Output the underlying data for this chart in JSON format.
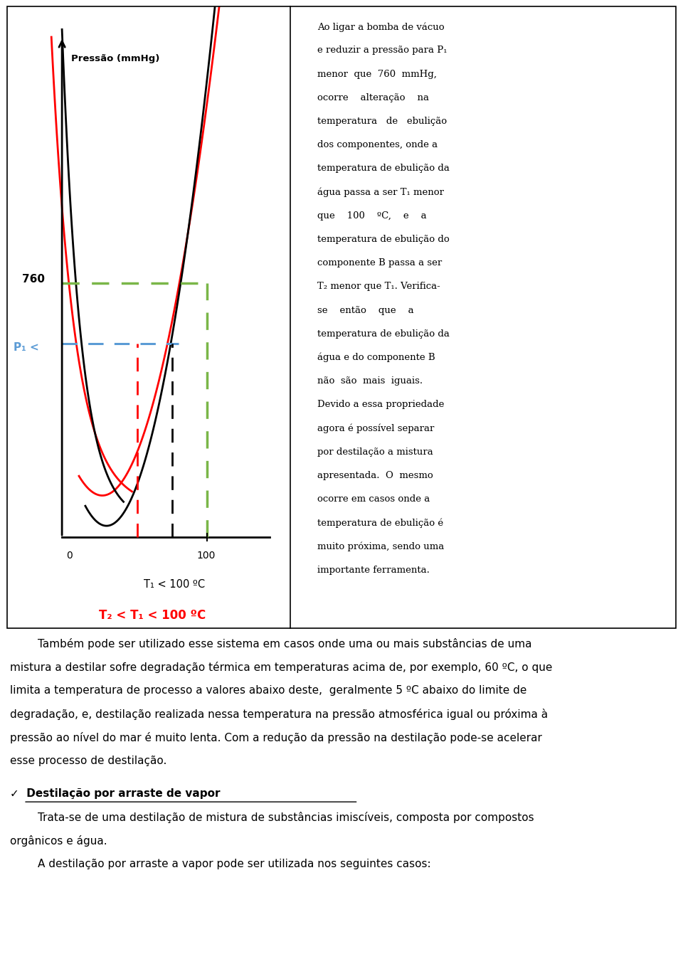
{
  "fig_width": 9.6,
  "fig_height": 13.48,
  "bg_color": "#ffffff",
  "right_panel_text": "Ao ligar a bomba de vácuo e reduzir a pressão para P₁ menor que 760 mmHg, ocorre  alteração  na temperatura  de  ebulição dos componentes, onde a temperatura de ebulição da água passa a ser T₁ menor que   100  ºC,   e   a temperatura de ebulição do componente B passa a ser T₂ menor que T₁. Verifica-se  então   que   a temperatura de ebulição da água e do componente B não  são  mais  iguais. Devido a essa propriedade agora é possível separar por destilação a mistura apresentada.  O  mesmo ocorre em casos onde a temperatura de ebulição é muito próxima, sendo uma importante ferramenta.",
  "bottom_text_1": "        Também pode ser utilizado esse sistema em casos onde uma ou mais substâncias de uma mistura a destilar sofre degradação térmica em temperaturas acima de, por exemplo, 60 ºC, o que limita a temperatura de processo a valores abaixo deste, geralmente 5 ºC abaixo do limite de degradação, e, destilação realizada nessa temperatura na pressão atmosférica igual ou próxima à pressão ao nível do mar é muito lenta. Com a redução da pressão na destilação pode-se acelerar esse processo de destilação.",
  "bottom_heading": "✓ Destilação por arraste de vapor",
  "bottom_text_2": "        Trata-se de uma destilação de mistura de substâncias imiscíveis, composta por compostos orgânicos e água.",
  "bottom_text_3": "        A destilação por arraste a vapor pode ser utilizada nos seguintes casos:"
}
